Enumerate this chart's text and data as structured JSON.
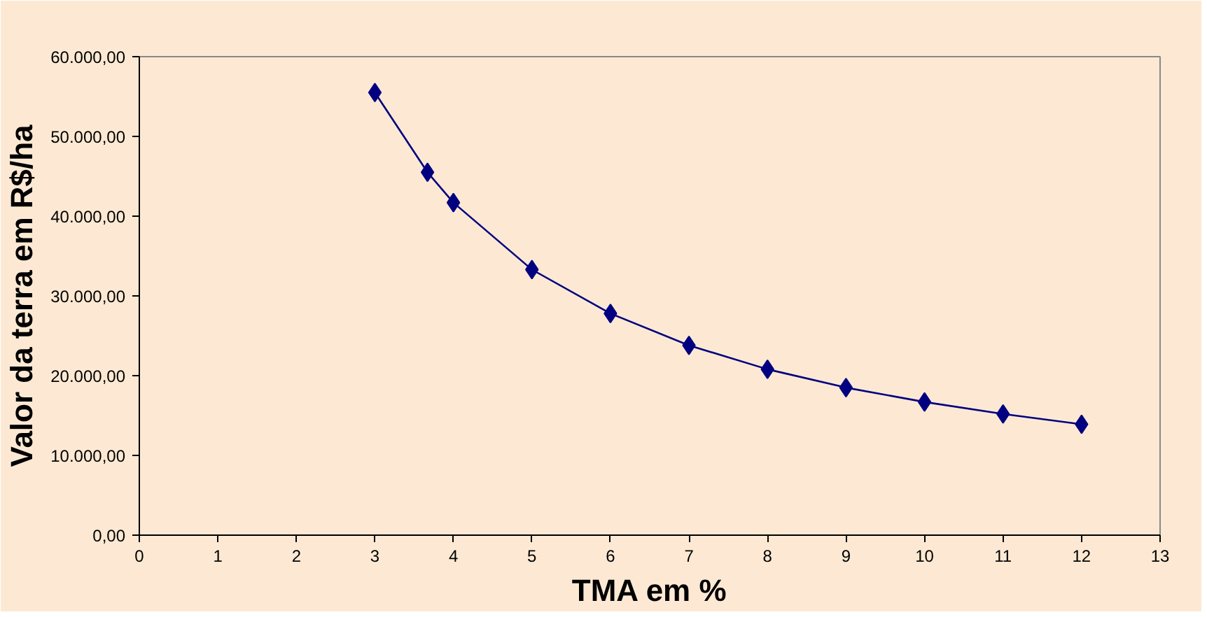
{
  "chart_data": {
    "type": "line",
    "xlabel": "TMA em %",
    "ylabel": "Valor da terra em R$/ha",
    "series": [
      {
        "color": "#000080",
        "x": [
          3,
          3.67,
          4,
          5,
          6,
          7,
          8,
          9,
          10,
          11,
          12
        ],
        "values": [
          55500,
          45500,
          41700,
          33300,
          27800,
          23800,
          20800,
          18500,
          16700,
          15200,
          13900
        ]
      }
    ],
    "xlim": [
      0,
      13
    ],
    "xticks": [
      0,
      1,
      2,
      3,
      4,
      5,
      6,
      7,
      8,
      9,
      10,
      11,
      12,
      13
    ],
    "ylim": [
      0,
      60000
    ],
    "yticks": [
      {
        "value": 0,
        "label": "0,00"
      },
      {
        "value": 10000,
        "label": "10.000,00"
      },
      {
        "value": 20000,
        "label": "20.000,00"
      },
      {
        "value": 30000,
        "label": "30.000,00"
      },
      {
        "value": 40000,
        "label": "40.000,00"
      },
      {
        "value": 50000,
        "label": "50.000,00"
      },
      {
        "value": 60000,
        "label": "60.000,00"
      }
    ],
    "marker": "diamond",
    "line_style": "solid",
    "grid": false
  }
}
